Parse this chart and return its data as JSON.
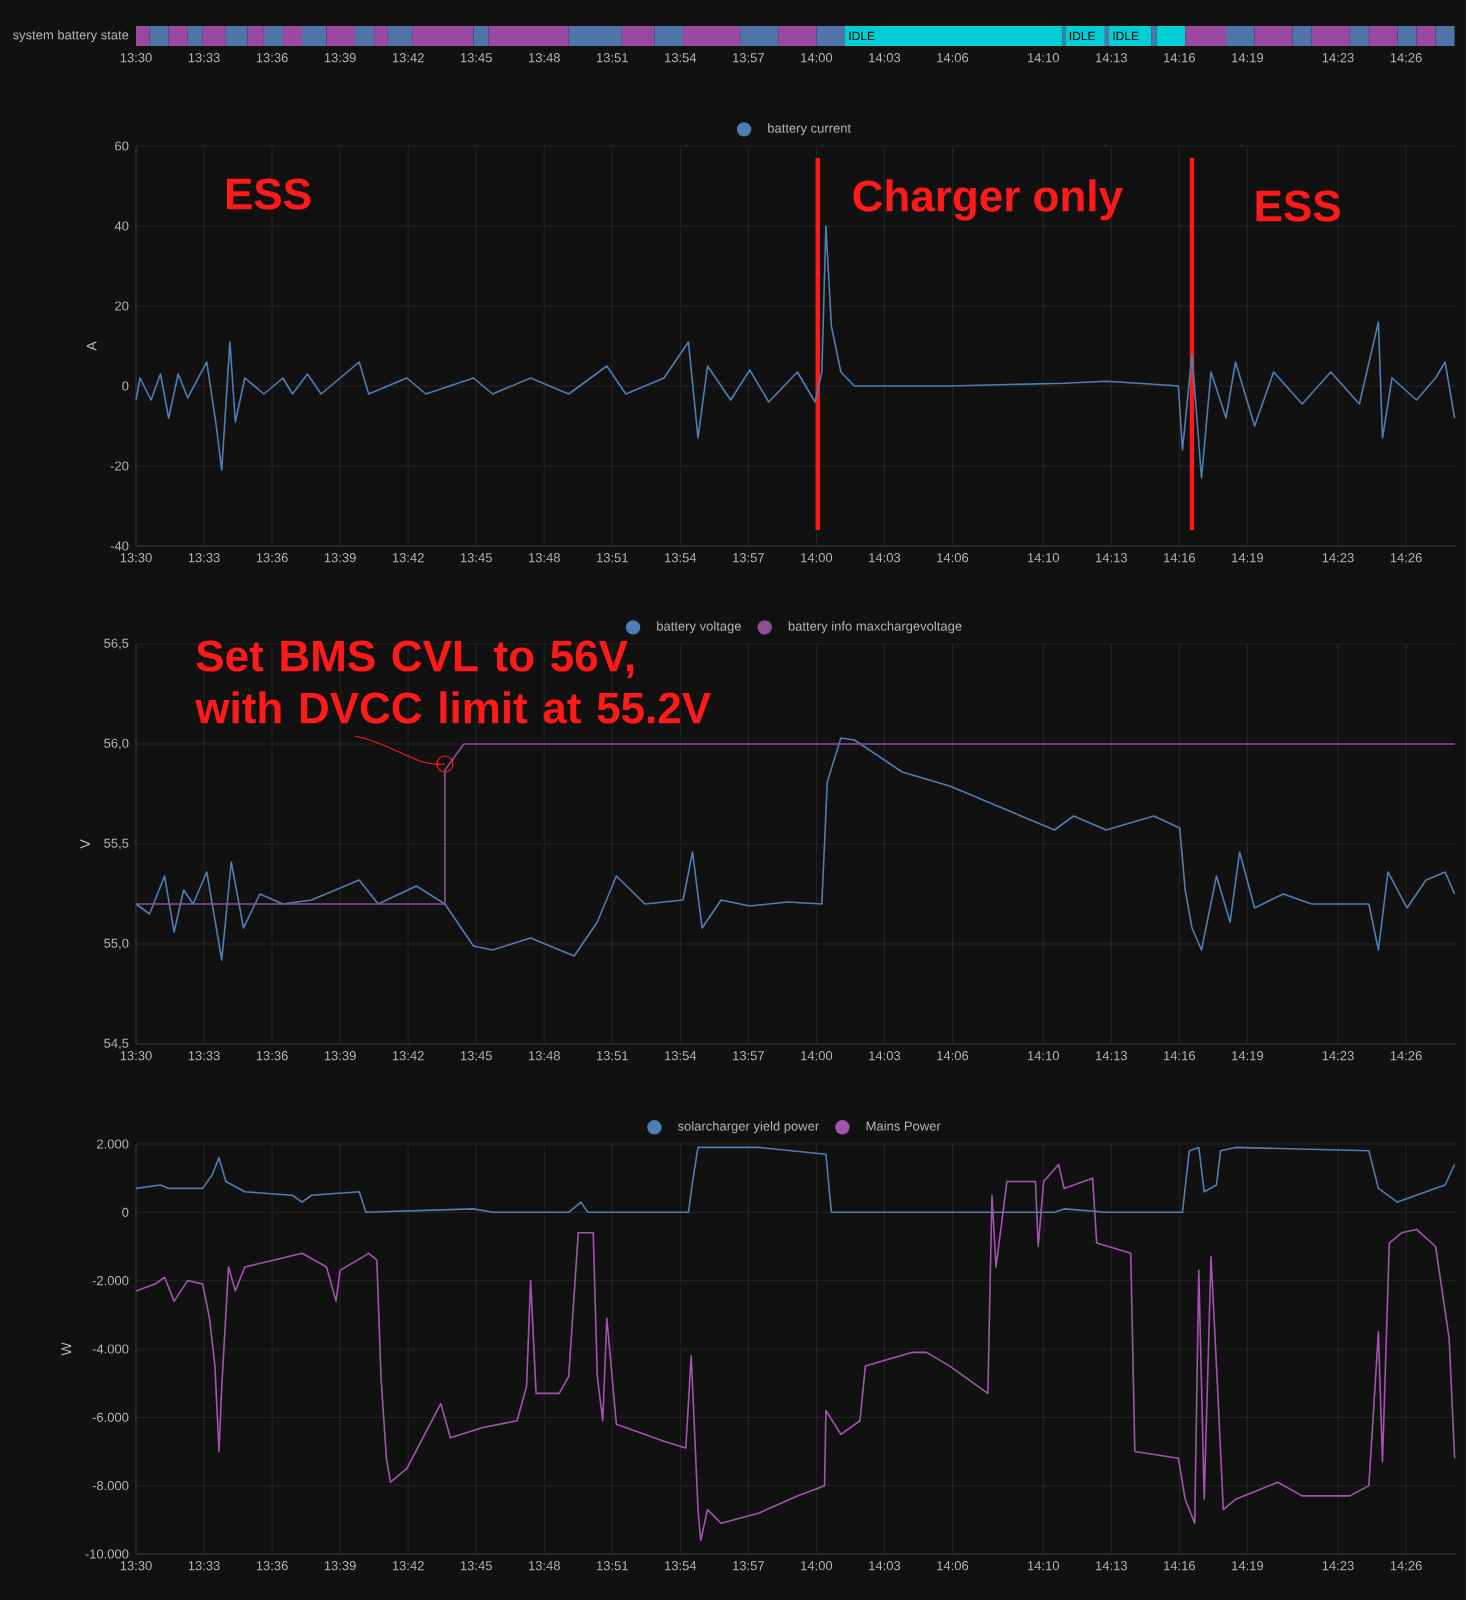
{
  "chart_data": [
    {
      "type": "bar",
      "orientation": "horizontal",
      "categories": [
        "system battery state"
      ],
      "xlim": [
        13.5,
        14.47
      ],
      "xticks": [
        {
          "value": 13.5,
          "label": "13:30"
        },
        {
          "value": 13.55,
          "label": "13:33"
        },
        {
          "value": 13.6,
          "label": "13:36"
        },
        {
          "value": 13.65,
          "label": "13:39"
        },
        {
          "value": 13.7,
          "label": "13:42"
        },
        {
          "value": 13.75,
          "label": "13:45"
        },
        {
          "value": 13.8,
          "label": "13:48"
        },
        {
          "value": 13.85,
          "label": "13:51"
        },
        {
          "value": 13.9,
          "label": "13:54"
        },
        {
          "value": 13.95,
          "label": "13:57"
        },
        {
          "value": 14.0,
          "label": "14:00"
        },
        {
          "value": 14.05,
          "label": "14:03"
        },
        {
          "value": 14.1,
          "label": "14:06"
        },
        {
          "value": 14.1667,
          "label": "14:10"
        },
        {
          "value": 14.2167,
          "label": "14:13"
        },
        {
          "value": 14.2667,
          "label": "14:16"
        },
        {
          "value": 14.3167,
          "label": "14:19"
        },
        {
          "value": 14.3833,
          "label": "14:23"
        },
        {
          "value": 14.4333,
          "label": "14:26"
        }
      ],
      "series": [
        {
          "color": "#9a4a9e",
          "base": [
            13.5
          ],
          "values": [
            0.01
          ]
        },
        {
          "color": "#4f74a8",
          "base": [
            13.51
          ],
          "values": [
            0.014
          ]
        },
        {
          "color": "#9a4a9e",
          "base": [
            13.524
          ],
          "values": [
            0.014
          ]
        },
        {
          "color": "#4f74a8",
          "base": [
            13.538
          ],
          "values": [
            0.011
          ]
        },
        {
          "color": "#9a4a9e",
          "base": [
            13.549
          ],
          "values": [
            0.017
          ]
        },
        {
          "color": "#4f74a8",
          "base": [
            13.566
          ],
          "values": [
            0.016
          ]
        },
        {
          "color": "#9a4a9e",
          "base": [
            13.582
          ],
          "values": [
            0.012
          ]
        },
        {
          "color": "#4f74a8",
          "base": [
            13.594
          ],
          "values": [
            0.014
          ]
        },
        {
          "color": "#9a4a9e",
          "base": [
            13.608
          ],
          "values": [
            0.014
          ]
        },
        {
          "color": "#4f74a8",
          "base": [
            13.622
          ],
          "values": [
            0.018
          ]
        },
        {
          "color": "#9a4a9e",
          "base": [
            13.64
          ],
          "values": [
            0.021
          ]
        },
        {
          "color": "#4f74a8",
          "base": [
            13.661
          ],
          "values": [
            0.014
          ]
        },
        {
          "color": "#9a4a9e",
          "base": [
            13.675
          ],
          "values": [
            0.01
          ]
        },
        {
          "color": "#4f74a8",
          "base": [
            13.685
          ],
          "values": [
            0.018
          ]
        },
        {
          "color": "#9a4a9e",
          "base": [
            13.703
          ],
          "values": [
            0.045
          ]
        },
        {
          "color": "#4f74a8",
          "base": [
            13.748
          ],
          "values": [
            0.011
          ]
        },
        {
          "color": "#9a4a9e",
          "base": [
            13.759
          ],
          "values": [
            0.059
          ]
        },
        {
          "color": "#4f74a8",
          "base": [
            13.818
          ],
          "values": [
            0.039
          ]
        },
        {
          "color": "#9a4a9e",
          "base": [
            13.857
          ],
          "values": [
            0.024
          ]
        },
        {
          "color": "#4f74a8",
          "base": [
            13.881
          ],
          "values": [
            0.021
          ]
        },
        {
          "color": "#9a4a9e",
          "base": [
            13.902
          ],
          "values": [
            0.042
          ]
        },
        {
          "color": "#4f74a8",
          "base": [
            13.944
          ],
          "values": [
            0.028
          ]
        },
        {
          "color": "#9a4a9e",
          "base": [
            13.972
          ],
          "values": [
            0.028
          ]
        },
        {
          "color": "#4f74a8",
          "base": [
            14.0
          ],
          "values": [
            0.021
          ]
        },
        {
          "color": "#00cdd4",
          "base": [
            14.021
          ],
          "values": [
            0.16
          ],
          "value_labels": [
            "IDLE"
          ]
        },
        {
          "color": "#4f74a8",
          "base": [
            14.181
          ],
          "values": [
            0.002
          ]
        },
        {
          "color": "#00cdd4",
          "base": [
            14.183
          ],
          "values": [
            0.029
          ],
          "value_labels": [
            "IDLE"
          ]
        },
        {
          "color": "#4f74a8",
          "base": [
            14.212
          ],
          "values": [
            0.003
          ]
        },
        {
          "color": "#00cdd4",
          "base": [
            14.215
          ],
          "values": [
            0.031
          ],
          "value_labels": [
            "IDLE"
          ]
        },
        {
          "color": "#4f74a8",
          "base": [
            14.246
          ],
          "values": [
            0.004
          ]
        },
        {
          "color": "#00cdd4",
          "base": [
            14.25
          ],
          "values": [
            0.021
          ]
        },
        {
          "color": "#9a4a9e",
          "base": [
            14.271
          ],
          "values": [
            0.03
          ]
        },
        {
          "color": "#4f74a8",
          "base": [
            14.301
          ],
          "values": [
            0.021
          ]
        },
        {
          "color": "#9a4a9e",
          "base": [
            14.322
          ],
          "values": [
            0.028
          ]
        },
        {
          "color": "#4f74a8",
          "base": [
            14.35
          ],
          "values": [
            0.014
          ]
        },
        {
          "color": "#9a4a9e",
          "base": [
            14.364
          ],
          "values": [
            0.028
          ]
        },
        {
          "color": "#4f74a8",
          "base": [
            14.392
          ],
          "values": [
            0.014
          ]
        },
        {
          "color": "#9a4a9e",
          "base": [
            14.406
          ],
          "values": [
            0.021
          ]
        },
        {
          "color": "#4f74a8",
          "base": [
            14.427
          ],
          "values": [
            0.014
          ]
        },
        {
          "color": "#9a4a9e",
          "base": [
            14.441
          ],
          "values": [
            0.014
          ]
        },
        {
          "color": "#4f74a8",
          "base": [
            14.455
          ],
          "values": [
            0.014
          ]
        }
      ]
    },
    {
      "type": "line",
      "ylabel": "A",
      "xlim": [
        13.5,
        14.47
      ],
      "ylim": [
        -40,
        60
      ],
      "yticks": [
        -40,
        -20,
        0,
        20,
        40,
        60
      ],
      "grid": true,
      "legend": "top",
      "xticks": [
        {
          "value": 13.5,
          "label": "13:30"
        },
        {
          "value": 13.55,
          "label": "13:33"
        },
        {
          "value": 13.6,
          "label": "13:36"
        },
        {
          "value": 13.65,
          "label": "13:39"
        },
        {
          "value": 13.7,
          "label": "13:42"
        },
        {
          "value": 13.75,
          "label": "13:45"
        },
        {
          "value": 13.8,
          "label": "13:48"
        },
        {
          "value": 13.85,
          "label": "13:51"
        },
        {
          "value": 13.9,
          "label": "13:54"
        },
        {
          "value": 13.95,
          "label": "13:57"
        },
        {
          "value": 14.0,
          "label": "14:00"
        },
        {
          "value": 14.05,
          "label": "14:03"
        },
        {
          "value": 14.1,
          "label": "14:06"
        },
        {
          "value": 14.1667,
          "label": "14:10"
        },
        {
          "value": 14.2167,
          "label": "14:13"
        },
        {
          "value": 14.2667,
          "label": "14:16"
        },
        {
          "value": 14.3167,
          "label": "14:19"
        },
        {
          "value": 14.3833,
          "label": "14:23"
        },
        {
          "value": 14.4333,
          "label": "14:26"
        }
      ],
      "series": [
        {
          "name": "battery current",
          "color": "#4e7fb4",
          "x": [
            13.5,
            13.503,
            13.511,
            13.518,
            13.524,
            13.531,
            13.538,
            13.552,
            13.559,
            13.563,
            13.569,
            13.573,
            13.58,
            13.594,
            13.608,
            13.615,
            13.626,
            13.636,
            13.664,
            13.671,
            13.699,
            13.713,
            13.748,
            13.762,
            13.79,
            13.818,
            13.846,
            13.86,
            13.888,
            13.906,
            13.913,
            13.92,
            13.937,
            13.951,
            13.965,
            13.986,
            13.999,
            14.004,
            14.007,
            14.011,
            14.018,
            14.028,
            14.098,
            14.182,
            14.213,
            14.245,
            14.266,
            14.269,
            14.276,
            14.283,
            14.29,
            14.301,
            14.308,
            14.322,
            14.336,
            14.357,
            14.378,
            14.399,
            14.413,
            14.416,
            14.423,
            14.441,
            14.455,
            14.462,
            14.469
          ],
          "values": [
            -3.5,
            2,
            -3.5,
            3,
            -8,
            3,
            -3,
            6,
            -10,
            -21,
            11,
            -9,
            2,
            -2,
            2,
            -2,
            3,
            -2,
            6,
            -2,
            2,
            -2,
            2,
            -2,
            2,
            -2,
            5,
            -2,
            2,
            11,
            -13,
            5,
            -3.5,
            4,
            -4,
            3.5,
            -4,
            3.5,
            40,
            15,
            3.5,
            0,
            0,
            0.7,
            1.2,
            0.5,
            0,
            -16,
            8,
            -23,
            3.5,
            -8,
            6,
            -10,
            3.5,
            -4.5,
            3.5,
            -4.5,
            16,
            -13,
            2,
            -3.5,
            2,
            6,
            -8
          ]
        }
      ],
      "ref_lines": [
        {
          "axis": "x",
          "value": 14.001,
          "color": "#ff1a1a"
        },
        {
          "axis": "x",
          "value": 14.276,
          "color": "#ff1a1a"
        }
      ],
      "annotations": [
        "ESS",
        "Charger only",
        "ESS"
      ]
    },
    {
      "type": "line",
      "ylabel": "V",
      "xlim": [
        13.5,
        14.47
      ],
      "ylim": [
        54.5,
        56.5
      ],
      "yticks": [
        {
          "value": 54.5,
          "label": "54,5"
        },
        {
          "value": 55.0,
          "label": "55,0"
        },
        {
          "value": 55.5,
          "label": "55,5"
        },
        {
          "value": 56.0,
          "label": "56,0"
        },
        {
          "value": 56.5,
          "label": "56,5"
        }
      ],
      "grid": true,
      "legend": "top",
      "xticks": [
        {
          "value": 13.5,
          "label": "13:30"
        },
        {
          "value": 13.55,
          "label": "13:33"
        },
        {
          "value": 13.6,
          "label": "13:36"
        },
        {
          "value": 13.65,
          "label": "13:39"
        },
        {
          "value": 13.7,
          "label": "13:42"
        },
        {
          "value": 13.75,
          "label": "13:45"
        },
        {
          "value": 13.8,
          "label": "13:48"
        },
        {
          "value": 13.85,
          "label": "13:51"
        },
        {
          "value": 13.9,
          "label": "13:54"
        },
        {
          "value": 13.95,
          "label": "13:57"
        },
        {
          "value": 14.0,
          "label": "14:00"
        },
        {
          "value": 14.05,
          "label": "14:03"
        },
        {
          "value": 14.1,
          "label": "14:06"
        },
        {
          "value": 14.1667,
          "label": "14:10"
        },
        {
          "value": 14.2167,
          "label": "14:13"
        },
        {
          "value": 14.2667,
          "label": "14:16"
        },
        {
          "value": 14.3167,
          "label": "14:19"
        },
        {
          "value": 14.3833,
          "label": "14:23"
        },
        {
          "value": 14.4333,
          "label": "14:26"
        }
      ],
      "series": [
        {
          "name": "battery voltage",
          "color": "#4e7fb4",
          "x": [
            13.5,
            13.51,
            13.521,
            13.528,
            13.535,
            13.542,
            13.552,
            13.563,
            13.57,
            13.579,
            13.591,
            13.608,
            13.629,
            13.664,
            13.678,
            13.706,
            13.727,
            13.748,
            13.762,
            13.79,
            13.822,
            13.839,
            13.853,
            13.874,
            13.902,
            13.909,
            13.916,
            13.93,
            13.951,
            13.979,
            14.004,
            14.008,
            14.018,
            14.028,
            14.063,
            14.098,
            14.133,
            14.175,
            14.189,
            14.213,
            14.248,
            14.267,
            14.271,
            14.276,
            14.283,
            14.294,
            14.304,
            14.311,
            14.322,
            14.343,
            14.364,
            14.406,
            14.413,
            14.42,
            14.434,
            14.448,
            14.462,
            14.469
          ],
          "values": [
            55.2,
            55.15,
            55.34,
            55.06,
            55.27,
            55.2,
            55.36,
            54.92,
            55.41,
            55.08,
            55.25,
            55.2,
            55.22,
            55.32,
            55.2,
            55.29,
            55.2,
            54.99,
            54.97,
            55.03,
            54.94,
            55.11,
            55.34,
            55.2,
            55.22,
            55.46,
            55.08,
            55.22,
            55.19,
            55.21,
            55.2,
            55.81,
            56.03,
            56.02,
            55.86,
            55.79,
            55.69,
            55.57,
            55.64,
            55.57,
            55.64,
            55.58,
            55.27,
            55.08,
            54.97,
            55.34,
            55.11,
            55.46,
            55.18,
            55.25,
            55.2,
            55.2,
            54.97,
            55.36,
            55.18,
            55.32,
            55.36,
            55.25
          ]
        },
        {
          "name": "battery info maxchargevoltage",
          "color": "#8e4f96",
          "x": [
            13.5,
            13.727,
            13.727,
            13.741,
            14.469
          ],
          "values": [
            55.2,
            55.2,
            55.87,
            56.0,
            56.0
          ]
        }
      ],
      "annotations": [
        {
          "text": "Set BMS CVL to 56V, with DVCC limit at 55.2V",
          "x": 13.727,
          "y": 55.9
        }
      ]
    },
    {
      "type": "line",
      "ylabel": "W",
      "xlim": [
        13.5,
        14.47
      ],
      "ylim": [
        -10000,
        2000
      ],
      "yticks": [
        {
          "value": -10000,
          "label": "-10.000"
        },
        {
          "value": -8000,
          "label": "-8.000"
        },
        {
          "value": -6000,
          "label": "-6.000"
        },
        {
          "value": -4000,
          "label": "-4.000"
        },
        {
          "value": -2000,
          "label": "-2.000"
        },
        0,
        {
          "value": 2000,
          "label": "2.000"
        }
      ],
      "grid": true,
      "legend": "top",
      "xticks": [
        {
          "value": 13.5,
          "label": "13:30"
        },
        {
          "value": 13.55,
          "label": "13:33"
        },
        {
          "value": 13.6,
          "label": "13:36"
        },
        {
          "value": 13.65,
          "label": "13:39"
        },
        {
          "value": 13.7,
          "label": "13:42"
        },
        {
          "value": 13.75,
          "label": "13:45"
        },
        {
          "value": 13.8,
          "label": "13:48"
        },
        {
          "value": 13.85,
          "label": "13:51"
        },
        {
          "value": 13.9,
          "label": "13:54"
        },
        {
          "value": 13.95,
          "label": "13:57"
        },
        {
          "value": 14.0,
          "label": "14:00"
        },
        {
          "value": 14.05,
          "label": "14:03"
        },
        {
          "value": 14.1,
          "label": "14:06"
        },
        {
          "value": 14.1667,
          "label": "14:10"
        },
        {
          "value": 14.2167,
          "label": "14:13"
        },
        {
          "value": 14.2667,
          "label": "14:16"
        },
        {
          "value": 14.3167,
          "label": "14:19"
        },
        {
          "value": 14.3833,
          "label": "14:23"
        },
        {
          "value": 14.4333,
          "label": "14:26"
        }
      ],
      "series": [
        {
          "name": "solarcharger yield power",
          "color": "#4e7fb4",
          "x": [
            13.5,
            13.518,
            13.524,
            13.549,
            13.556,
            13.561,
            13.566,
            13.58,
            13.615,
            13.622,
            13.629,
            13.664,
            13.669,
            13.748,
            13.762,
            13.818,
            13.827,
            13.832,
            13.906,
            13.909,
            13.913,
            13.958,
            14.007,
            14.011,
            14.175,
            14.182,
            14.213,
            14.269,
            14.274,
            14.281,
            14.285,
            14.294,
            14.297,
            14.308,
            14.406,
            14.413,
            14.427,
            14.448,
            14.462,
            14.469
          ],
          "values": [
            700,
            800,
            700,
            700,
            1100,
            1600,
            900,
            600,
            500,
            300,
            500,
            600,
            0,
            100,
            0,
            0,
            300,
            0,
            0,
            900,
            1900,
            1900,
            1700,
            0,
            0,
            100,
            0,
            0,
            1800,
            1900,
            600,
            800,
            1800,
            1900,
            1800,
            700,
            300,
            600,
            800,
            1400
          ]
        },
        {
          "name": "Mains Power",
          "color": "#a453b0",
          "x": [
            13.5,
            13.514,
            13.521,
            13.528,
            13.538,
            13.549,
            13.554,
            13.558,
            13.561,
            13.563,
            13.568,
            13.573,
            13.58,
            13.601,
            13.622,
            13.64,
            13.647,
            13.65,
            13.671,
            13.677,
            13.68,
            13.684,
            13.687,
            13.699,
            13.72,
            13.724,
            13.731,
            13.755,
            13.78,
            13.787,
            13.79,
            13.794,
            13.811,
            13.818,
            13.825,
            13.836,
            13.839,
            13.843,
            13.846,
            13.853,
            13.888,
            13.904,
            13.908,
            13.913,
            13.915,
            13.92,
            13.93,
            13.958,
            13.986,
            14.006,
            14.007,
            14.018,
            14.032,
            14.036,
            14.07,
            14.081,
            14.098,
            14.126,
            14.129,
            14.132,
            14.14,
            14.161,
            14.163,
            14.167,
            14.178,
            14.182,
            14.203,
            14.206,
            14.231,
            14.234,
            14.266,
            14.271,
            14.278,
            14.281,
            14.285,
            14.29,
            14.295,
            14.299,
            14.308,
            14.339,
            14.357,
            14.392,
            14.406,
            14.413,
            14.416,
            14.421,
            14.43,
            14.441,
            14.455,
            14.465,
            14.469
          ],
          "values": [
            -2300,
            -2100,
            -1900,
            -2600,
            -2000,
            -2100,
            -3100,
            -4500,
            -7000,
            -5100,
            -1600,
            -2300,
            -1600,
            -1400,
            -1200,
            -1600,
            -2600,
            -1700,
            -1200,
            -1400,
            -4800,
            -7200,
            -7900,
            -7500,
            -5900,
            -5600,
            -6600,
            -6300,
            -6100,
            -5100,
            -2000,
            -5300,
            -5300,
            -4800,
            -600,
            -600,
            -4800,
            -6100,
            -3100,
            -6200,
            -6700,
            -6900,
            -4200,
            -8700,
            -9600,
            -8700,
            -9100,
            -8800,
            -8300,
            -8000,
            -5800,
            -6500,
            -6100,
            -4500,
            -4100,
            -4100,
            -4500,
            -5300,
            500,
            -1600,
            900,
            900,
            -1000,
            900,
            1400,
            700,
            1000,
            -900,
            -1200,
            -7000,
            -7200,
            -8400,
            -9100,
            -1700,
            -8400,
            -1300,
            -5300,
            -8700,
            -8400,
            -7900,
            -8300,
            -8300,
            -8000,
            -3500,
            -7300,
            -900,
            -600,
            -500,
            -1000,
            -3700,
            -7200
          ]
        }
      ]
    }
  ]
}
